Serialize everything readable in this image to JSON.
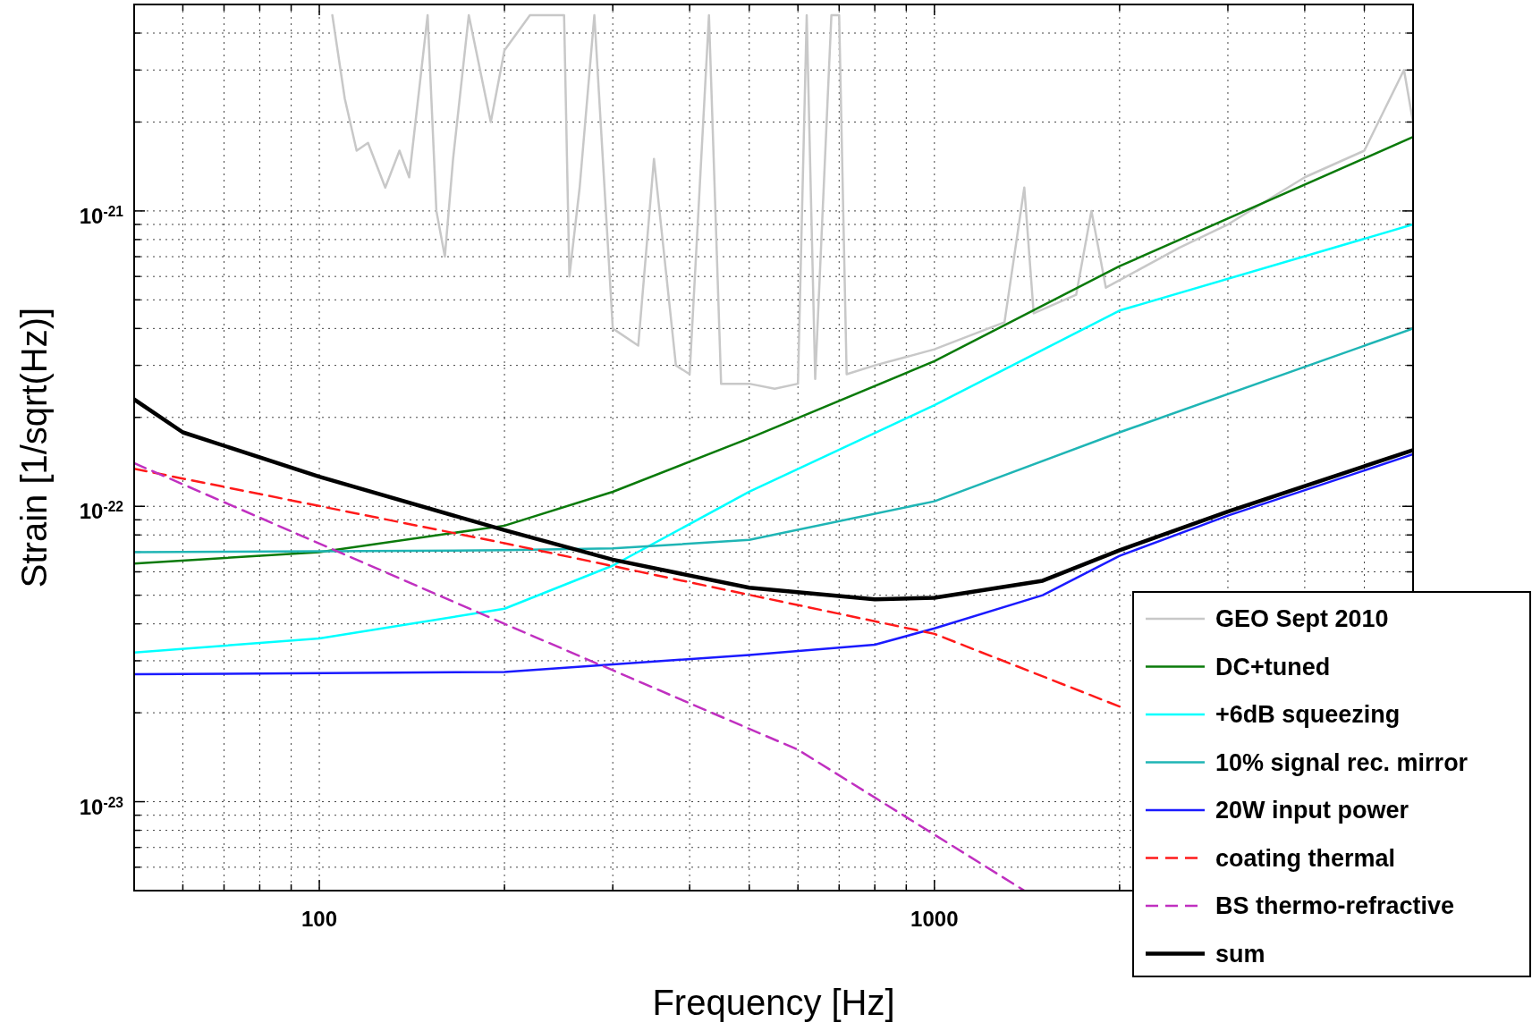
{
  "chart_data": {
    "type": "line",
    "xlabel": "Frequency [Hz]",
    "ylabel": "Strain [1/sqrt(Hz)]",
    "log": "xy",
    "grid": true,
    "legend": "bottom right",
    "xlim": [
      50,
      6000
    ],
    "ylim": [
      5e-24,
      5e-21
    ],
    "xticks": [
      {
        "value": 60,
        "label": null
      },
      {
        "value": 70,
        "label": null
      },
      {
        "value": 80,
        "label": null
      },
      {
        "value": 90,
        "label": null
      },
      100,
      {
        "value": 200,
        "label": null
      },
      {
        "value": 300,
        "label": null
      },
      {
        "value": 400,
        "label": null
      },
      {
        "value": 500,
        "label": null
      },
      {
        "value": 600,
        "label": null
      },
      {
        "value": 700,
        "label": null
      },
      {
        "value": 800,
        "label": null
      },
      {
        "value": 900,
        "label": null
      },
      1000,
      {
        "value": 2000,
        "label": null
      },
      {
        "value": 3000,
        "label": null
      },
      {
        "value": 4000,
        "label": null
      },
      {
        "value": 5000,
        "label": null
      }
    ],
    "yticks": [
      {
        "value": 6e-24,
        "label": null
      },
      {
        "value": 7e-24,
        "label": null
      },
      {
        "value": 8e-24,
        "label": null
      },
      {
        "value": 9e-24,
        "label": null
      },
      {
        "value": 1e-23,
        "label": "10$^{-23}$"
      },
      {
        "value": 2e-23,
        "label": null
      },
      {
        "value": 3e-23,
        "label": null
      },
      {
        "value": 4e-23,
        "label": null
      },
      {
        "value": 5e-23,
        "label": null
      },
      {
        "value": 6e-23,
        "label": null
      },
      {
        "value": 7e-23,
        "label": null
      },
      {
        "value": 8e-23,
        "label": null
      },
      {
        "value": 9e-23,
        "label": null
      },
      {
        "value": 1e-22,
        "label": "10$^{-22}$"
      },
      {
        "value": 2e-22,
        "label": null
      },
      {
        "value": 3e-22,
        "label": null
      },
      {
        "value": 4e-22,
        "label": null
      },
      {
        "value": 5e-22,
        "label": null
      },
      {
        "value": 6e-22,
        "label": null
      },
      {
        "value": 7e-22,
        "label": null
      },
      {
        "value": 8e-22,
        "label": null
      },
      {
        "value": 9e-22,
        "label": null
      },
      {
        "value": 1e-21,
        "label": "10$^{-21}$"
      },
      {
        "value": 2e-21,
        "label": null
      },
      {
        "value": 3e-21,
        "label": null
      },
      {
        "value": 4e-21,
        "label": null
      }
    ],
    "series": [
      {
        "name": "GEO Sept 2010",
        "color": "#c8c8c8",
        "line_style": "solid",
        "x": [
          105,
          110,
          115,
          120,
          128,
          135,
          140,
          150,
          155,
          160,
          165,
          175,
          190,
          200,
          220,
          250,
          255,
          265,
          280,
          300,
          330,
          350,
          380,
          400,
          430,
          450,
          500,
          550,
          600,
          620,
          640,
          680,
          700,
          720,
          800,
          1000,
          1300,
          1400,
          1450,
          1700,
          1800,
          1900,
          2500,
          3000,
          4000,
          5000,
          5800,
          6000
        ],
        "values": [
          4.6e-21,
          2.4e-21,
          1.6e-21,
          1.7e-21,
          1.2e-21,
          1.6e-21,
          1.3e-21,
          4.6e-21,
          1e-21,
          7e-22,
          1.5e-21,
          4.6e-21,
          2e-21,
          3.5e-21,
          4.6e-21,
          4.6e-21,
          6e-22,
          1.2e-21,
          4.6e-21,
          4e-22,
          3.5e-22,
          1.5e-21,
          3e-22,
          2.8e-22,
          4.6e-21,
          2.6e-22,
          2.6e-22,
          2.5e-22,
          2.6e-22,
          4.6e-21,
          2.7e-22,
          4.6e-21,
          4.6e-21,
          2.8e-22,
          3e-22,
          3.4e-22,
          4.2e-22,
          1.2e-21,
          4.5e-22,
          5.2e-22,
          1e-21,
          5.5e-22,
          7.5e-22,
          9e-22,
          1.3e-21,
          1.6e-21,
          3e-21,
          2e-21
        ]
      },
      {
        "name": "DC+tuned",
        "color": "#0a7a0a",
        "line_style": "solid",
        "x": [
          50,
          100,
          200,
          300,
          500,
          1000,
          2000,
          6000
        ],
        "values": [
          6.4e-23,
          7e-23,
          8.6e-23,
          1.12e-22,
          1.7e-22,
          3.1e-22,
          6.5e-22,
          1.78e-21
        ]
      },
      {
        "name": "+6dB squeezing",
        "color": "#00ffff",
        "line_style": "solid",
        "x": [
          50,
          100,
          200,
          300,
          500,
          1000,
          2000,
          6000
        ],
        "values": [
          3.2e-23,
          3.57e-23,
          4.5e-23,
          6.3e-23,
          1.12e-22,
          2.2e-22,
          4.6e-22,
          9e-22
        ]
      },
      {
        "name": "10% signal rec. mirror",
        "color": "#1fb5b5",
        "line_style": "solid",
        "x": [
          50,
          200,
          300,
          500,
          1000,
          2000,
          6000
        ],
        "values": [
          7e-23,
          7.1e-23,
          7.2e-23,
          7.7e-23,
          1.04e-22,
          1.78e-22,
          4e-22
        ]
      },
      {
        "name": "20W input power",
        "color": "#1a1aff",
        "line_style": "solid",
        "x": [
          50,
          200,
          500,
          800,
          1000,
          1500,
          2000,
          3000,
          6000
        ],
        "values": [
          2.7e-23,
          2.75e-23,
          3.14e-23,
          3.4e-23,
          3.86e-23,
          5e-23,
          6.8e-23,
          9.3e-23,
          1.5e-22
        ]
      },
      {
        "name": "coating thermal",
        "color": "#ff1a1a",
        "line_style": "dashed",
        "x": [
          50,
          200,
          1000,
          2000
        ],
        "values": [
          1.34e-22,
          7.5e-23,
          3.7e-23,
          2.1e-23
        ]
      },
      {
        "name": "BS thermo-refractive",
        "color": "#c030c0",
        "line_style": "dashed",
        "x": [
          50,
          200,
          600,
          1400
        ],
        "values": [
          1.4e-22,
          4e-23,
          1.5e-23,
          5e-24
        ]
      },
      {
        "name": "sum",
        "color": "#000000",
        "line_style": "solid",
        "x": [
          50,
          60,
          100,
          200,
          300,
          500,
          800,
          1000,
          1500,
          2000,
          3000,
          6000
        ],
        "values": [
          2.3e-22,
          1.78e-22,
          1.26e-22,
          8.3e-23,
          6.6e-23,
          5.3e-23,
          4.84e-23,
          4.9e-23,
          5.6e-23,
          7.1e-23,
          9.6e-23,
          1.55e-22
        ]
      }
    ]
  }
}
